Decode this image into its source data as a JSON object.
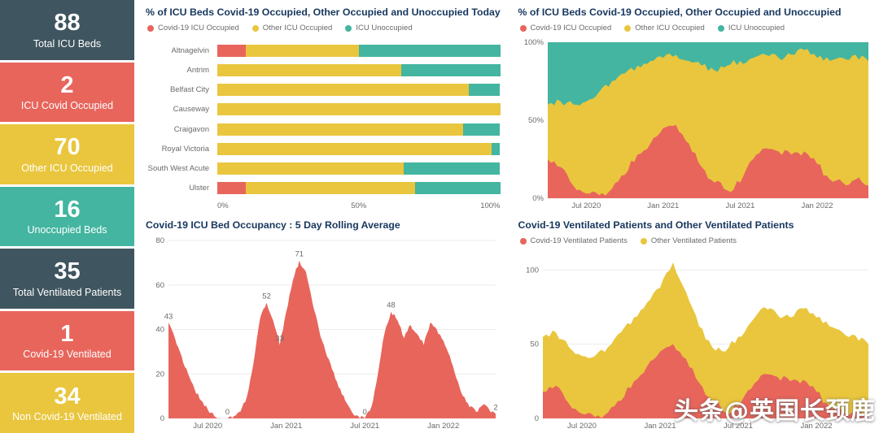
{
  "colors": {
    "covid": "#e8655c",
    "other": "#e9c63e",
    "unoccupied": "#43b5a0",
    "slate": "#3f555f",
    "title": "#17375e",
    "axis_text": "#6a6a6a"
  },
  "watermark": {
    "text": "头条@英国长颈鹿"
  },
  "kpi_cards": [
    {
      "value": "88",
      "label": "Total ICU Beds",
      "color": "slate"
    },
    {
      "value": "2",
      "label": "ICU Covid Occupied",
      "color": "covid"
    },
    {
      "value": "70",
      "label": "Other ICU Occupied",
      "color": "other"
    },
    {
      "value": "16",
      "label": "Unoccupied Beds",
      "color": "unoccupied"
    },
    {
      "value": "35",
      "label": "Total Ventilated Patients",
      "color": "slate"
    },
    {
      "value": "1",
      "label": "Covid-19 Ventilated",
      "color": "covid"
    },
    {
      "value": "34",
      "label": "Non Covid-19 Ventilated",
      "color": "other"
    }
  ],
  "chart_data": [
    {
      "id": "beds-today",
      "type": "bar",
      "orientation": "horizontal-stacked-100",
      "title": "% of ICU Beds Covid-19 Occupied, Other Occupied and Unoccupied Today",
      "legend": [
        {
          "label": "Covid-19 ICU Occupied",
          "color": "covid"
        },
        {
          "label": "Other ICU Occupied",
          "color": "other"
        },
        {
          "label": "ICU Unoccupied",
          "color": "unoccupied"
        }
      ],
      "categories": [
        "Altnagelvin",
        "Antrim",
        "Belfast City",
        "Causeway",
        "Craigavon",
        "Royal Victoria",
        "South West Acute",
        "Ulster"
      ],
      "series": [
        {
          "name": "Covid-19 ICU Occupied",
          "color": "covid",
          "values": [
            10,
            0,
            0,
            0,
            0,
            0,
            0,
            10
          ]
        },
        {
          "name": "Other ICU Occupied",
          "color": "other",
          "values": [
            40,
            65,
            89,
            100,
            87,
            97,
            66,
            60
          ]
        },
        {
          "name": "ICU Unoccupied",
          "color": "unoccupied",
          "values": [
            50,
            35,
            11,
            0,
            13,
            3,
            34,
            30
          ]
        }
      ],
      "x_ticks": [
        "0%",
        "50%",
        "100%"
      ],
      "xlim": [
        0,
        100
      ]
    },
    {
      "id": "beds-trend",
      "type": "area",
      "stacked": true,
      "title": "% of ICU Beds Covid-19 Occupied, Other Occupied and Unoccupied",
      "legend": [
        {
          "label": "Covid-19 ICU Occupied",
          "color": "covid"
        },
        {
          "label": "Other ICU Occupied",
          "color": "other"
        },
        {
          "label": "ICU Unoccupied",
          "color": "unoccupied"
        }
      ],
      "x": [
        0,
        1,
        2,
        3,
        4,
        5,
        6,
        7,
        8,
        9,
        10,
        11,
        12,
        13,
        14,
        15,
        16,
        17,
        18,
        19,
        20,
        21,
        22,
        23,
        24,
        25
      ],
      "series": [
        {
          "name": "Covid-19 ICU Occupied",
          "color": "covid",
          "values": [
            25,
            20,
            8,
            3,
            2,
            6,
            15,
            28,
            35,
            45,
            47,
            35,
            20,
            10,
            5,
            10,
            25,
            32,
            30,
            28,
            30,
            22,
            12,
            10,
            12,
            8
          ]
        },
        {
          "name": "Other ICU Occupied",
          "color": "other",
          "values": [
            35,
            42,
            52,
            59,
            66,
            69,
            65,
            57,
            53,
            45,
            45,
            53,
            65,
            72,
            80,
            78,
            65,
            60,
            60,
            64,
            65,
            68,
            76,
            80,
            80,
            80
          ]
        },
        {
          "name": "ICU Unoccupied",
          "color": "unoccupied",
          "remainder": true
        }
      ],
      "ylim": [
        0,
        100
      ],
      "jitter": 5,
      "pad_left": 36,
      "y_ticks": [
        {
          "v": 0,
          "label": "0%"
        },
        {
          "v": 50,
          "label": "50%"
        },
        {
          "v": 100,
          "label": "100%"
        }
      ],
      "x_ticks": [
        {
          "m": 3,
          "label": "Jul 2020"
        },
        {
          "m": 9,
          "label": "Jan 2021"
        },
        {
          "m": 15,
          "label": "Jul 2021"
        },
        {
          "m": 21,
          "label": "Jan 2022"
        }
      ]
    },
    {
      "id": "icu-rolling",
      "type": "area",
      "stacked": false,
      "title": "Covid-19 ICU Bed Occupancy : 5 Day Rolling Average",
      "x": [
        0,
        0.5,
        1,
        1.5,
        2,
        2.5,
        3,
        3.5,
        4,
        4.5,
        5,
        5.5,
        6,
        6.5,
        7,
        7.5,
        8,
        8.5,
        9,
        9.5,
        10,
        10.5,
        11,
        11.5,
        12,
        12.5,
        13,
        13.5,
        14,
        14.5,
        15,
        15.5,
        16,
        16.5,
        17,
        17.5,
        18,
        18.5,
        19,
        19.5,
        20,
        20.5,
        21,
        21.5,
        22,
        22.5,
        23,
        23.5,
        24,
        24.5,
        25
      ],
      "series": [
        {
          "name": "Covid-19 ICU Occupancy 5 Day Rolling Average",
          "color": "covid",
          "values": [
            43,
            36,
            28,
            20,
            13,
            8,
            4,
            1,
            0,
            0,
            1,
            3,
            10,
            25,
            45,
            52,
            44,
            33,
            48,
            62,
            71,
            66,
            52,
            40,
            30,
            22,
            14,
            8,
            3,
            1,
            0,
            5,
            20,
            38,
            48,
            44,
            36,
            42,
            38,
            33,
            43,
            40,
            35,
            28,
            18,
            10,
            5,
            3,
            6,
            4,
            2
          ]
        }
      ],
      "ylim": [
        0,
        80
      ],
      "jitter": 2,
      "pad_left": 28,
      "y_ticks": [
        {
          "v": 0,
          "label": "0"
        },
        {
          "v": 20,
          "label": "20"
        },
        {
          "v": 40,
          "label": "40"
        },
        {
          "v": 60,
          "label": "60"
        },
        {
          "v": 80,
          "label": "80"
        }
      ],
      "x_ticks": [
        {
          "m": 3,
          "label": "Jul 2020"
        },
        {
          "m": 9,
          "label": "Jan 2021"
        },
        {
          "m": 15,
          "label": "Jul 2021"
        },
        {
          "m": 21,
          "label": "Jan 2022"
        }
      ],
      "labels": [
        {
          "m": 0,
          "v": 43,
          "text": "43"
        },
        {
          "m": 4.5,
          "v": 0,
          "text": "0"
        },
        {
          "m": 7.5,
          "v": 52,
          "text": "52"
        },
        {
          "m": 8.5,
          "v": 33,
          "text": "33"
        },
        {
          "m": 10,
          "v": 71,
          "text": "71"
        },
        {
          "m": 15,
          "v": 0,
          "text": "0"
        },
        {
          "m": 17,
          "v": 48,
          "text": "48"
        },
        {
          "m": 25,
          "v": 2,
          "text": "2"
        }
      ]
    },
    {
      "id": "ventilated",
      "type": "area",
      "stacked": true,
      "title": "Covid-19 Ventilated Patients and Other Ventilated Patients",
      "legend": [
        {
          "label": "Covid-19 Ventilated Patients",
          "color": "covid"
        },
        {
          "label": "Other Ventilated Patients",
          "color": "other"
        }
      ],
      "x": [
        0,
        1,
        2,
        3,
        4,
        5,
        6,
        7,
        8,
        9,
        10,
        11,
        12,
        13,
        14,
        15,
        16,
        17,
        18,
        19,
        20,
        21,
        22,
        23,
        24,
        25
      ],
      "series": [
        {
          "name": "Covid-19 Ventilated Patients",
          "color": "covid",
          "values": [
            18,
            22,
            10,
            3,
            1,
            4,
            12,
            25,
            35,
            45,
            50,
            40,
            24,
            12,
            4,
            8,
            20,
            30,
            28,
            25,
            26,
            18,
            8,
            5,
            4,
            2
          ]
        },
        {
          "name": "Other Ventilated Patients",
          "color": "other",
          "values": [
            37,
            36,
            38,
            39,
            41,
            44,
            46,
            43,
            43,
            43,
            55,
            45,
            38,
            36,
            41,
            47,
            45,
            45,
            42,
            43,
            48,
            50,
            54,
            53,
            52,
            48
          ]
        }
      ],
      "ylim": [
        0,
        110
      ],
      "jitter": 5,
      "pad_left": 30,
      "y_ticks": [
        {
          "v": 0,
          "label": "0"
        },
        {
          "v": 50,
          "label": "50"
        },
        {
          "v": 100,
          "label": "100"
        }
      ],
      "x_ticks": [
        {
          "m": 3,
          "label": "Jul 2020"
        },
        {
          "m": 9,
          "label": "Jan 2021"
        },
        {
          "m": 15,
          "label": "Jul 2021"
        },
        {
          "m": 21,
          "label": "Jan 2022"
        }
      ]
    }
  ]
}
